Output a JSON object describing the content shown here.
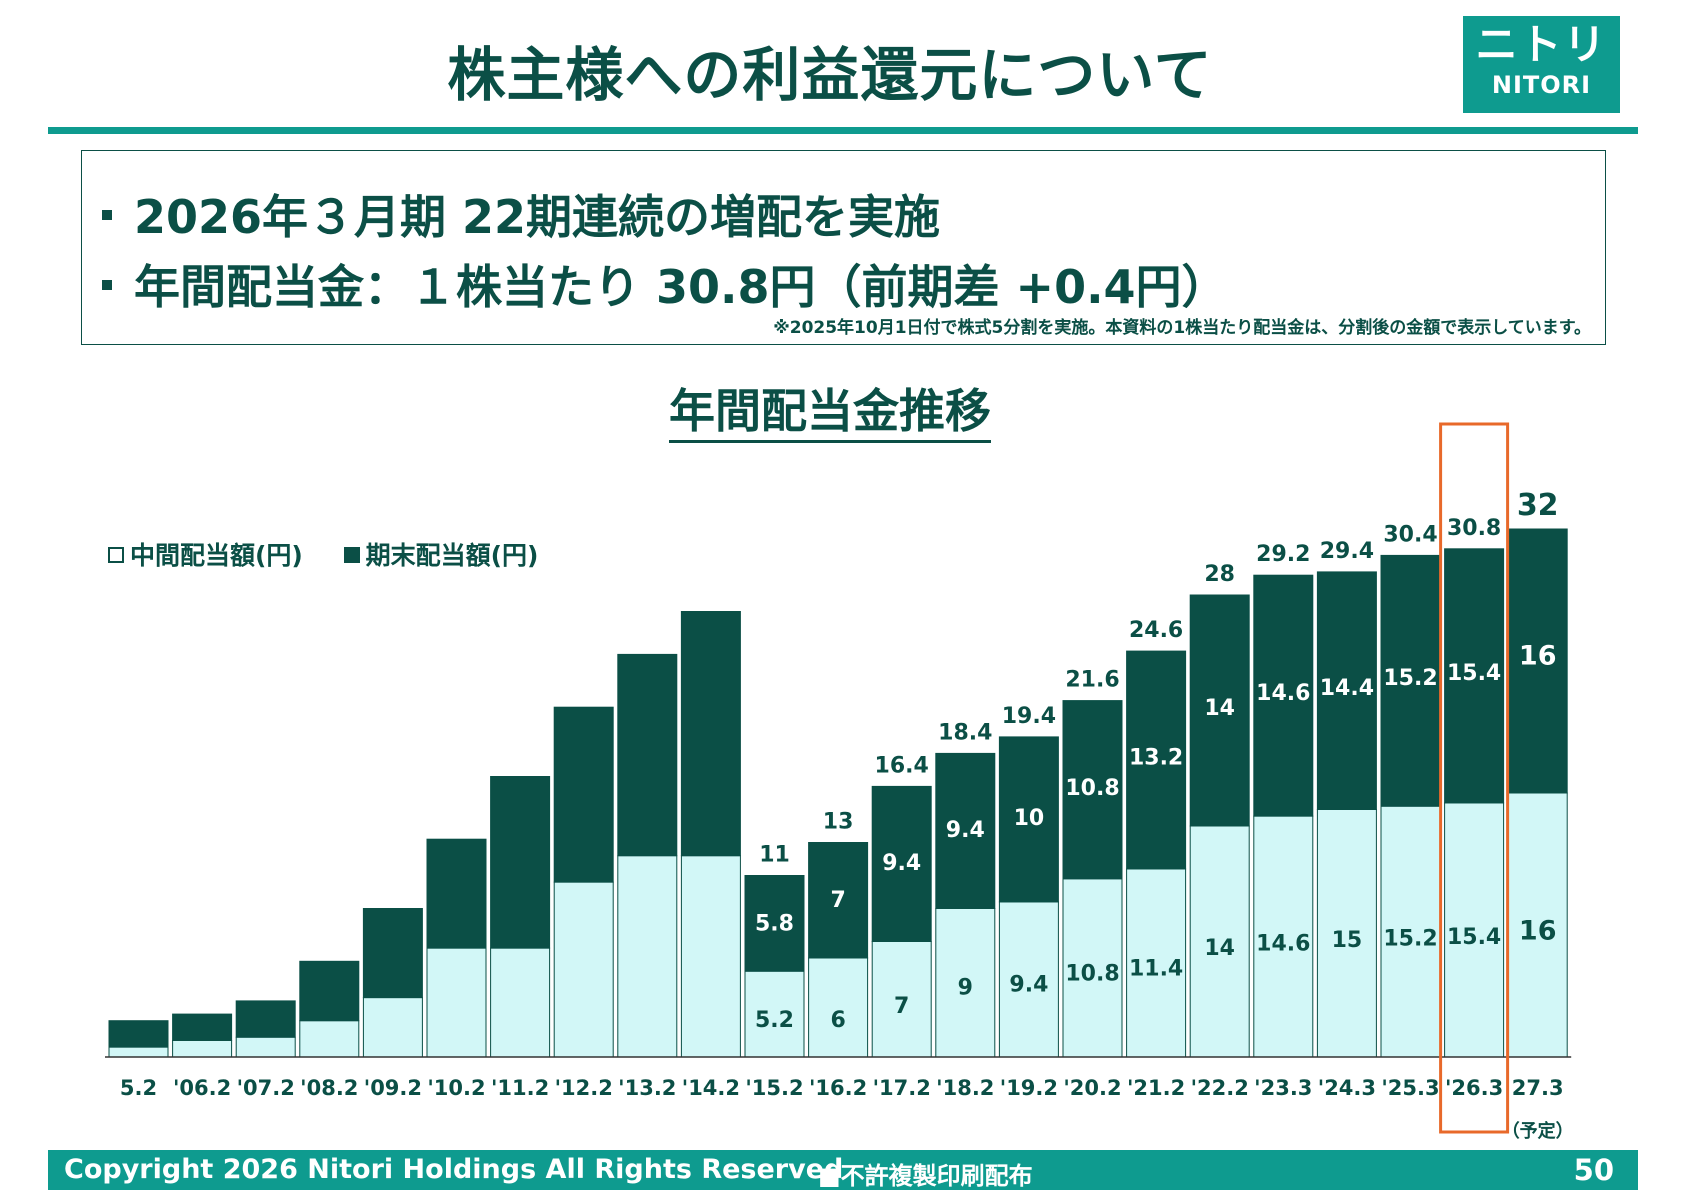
{
  "header": {
    "title": "株主様への利益還元について",
    "logo_jp": "ニトリ",
    "logo_en": "NITORI"
  },
  "summary": {
    "bullet1": "2026年３月期 22期連続の増配を実施",
    "bullet2": "年間配当金：１株当たり 30.8円（前期差 +0.4円）",
    "note": "※2025年10月1日付で株式5分割を実施。本資料の1株当たり配当金は、分割後の金額で表示しています。"
  },
  "chart_title": "年間配当金推移",
  "legend": {
    "interim": "中間配当額(円)",
    "final": "期末配当額(円)"
  },
  "footer": {
    "copyright": "Copyright 2026 Nitori Holdings All Rights Reserved",
    "mark": "■不許複製印刷配布",
    "page": "50"
  },
  "colors": {
    "dark_green": "#0b4f46",
    "teal": "#0e9b8f",
    "interim_fill": "#d2f7f7",
    "highlight": "#e8692a"
  },
  "chart_data": {
    "type": "bar",
    "stacked": true,
    "categories": [
      "5.2",
      "'06.2",
      "'07.2",
      "'08.2",
      "'09.2",
      "'10.2",
      "'11.2",
      "'12.2",
      "'13.2",
      "'14.2",
      "'15.2",
      "'16.2",
      "'17.2",
      "'18.2",
      "'19.2",
      "'20.2",
      "'21.2",
      "'22.2",
      "'23.3",
      "'24.3",
      "'25.3",
      "'26.3",
      "27.3"
    ],
    "category_note": {
      "index": 22,
      "text": "（予定）"
    },
    "series": [
      {
        "name": "中間配当額(円)",
        "values": [
          0.6,
          1.0,
          1.2,
          2.2,
          3.6,
          6.6,
          6.6,
          10.6,
          12.2,
          12.2,
          5.2,
          6,
          7,
          9,
          9.4,
          10.8,
          11.4,
          14,
          14.6,
          15,
          15.2,
          15.4,
          16
        ],
        "labels": [
          "",
          "",
          "",
          "",
          "",
          "",
          "",
          "",
          "",
          "",
          "5.2",
          "6",
          "7",
          "9",
          "9.4",
          "10.8",
          "11.4",
          "14",
          "14.6",
          "15",
          "15.2",
          "15.4",
          "16"
        ]
      },
      {
        "name": "期末配当額(円)",
        "values": [
          1.6,
          1.6,
          2.2,
          3.6,
          5.4,
          6.6,
          10.4,
          10.6,
          12.2,
          14.8,
          5.8,
          7,
          9.4,
          9.4,
          10,
          10.8,
          13.2,
          14,
          14.6,
          14.4,
          15.2,
          15.4,
          16
        ],
        "labels": [
          "",
          "",
          "",
          "",
          "",
          "",
          "",
          "",
          "",
          "",
          "5.8",
          "7",
          "9.4",
          "9.4",
          "10",
          "10.8",
          "13.2",
          "14",
          "14.6",
          "14.4",
          "15.2",
          "15.4",
          "16"
        ]
      }
    ],
    "totals": [
      "",
      "",
      "",
      "",
      "",
      "",
      "",
      "",
      "",
      "",
      "11",
      "13",
      "16.4",
      "18.4",
      "19.4",
      "21.6",
      "24.6",
      "28",
      "29.2",
      "29.4",
      "30.4",
      "30.8",
      "32"
    ],
    "highlight_index": 21,
    "ylim": [
      0,
      32
    ],
    "legend_position": "top-left",
    "grid": false
  }
}
